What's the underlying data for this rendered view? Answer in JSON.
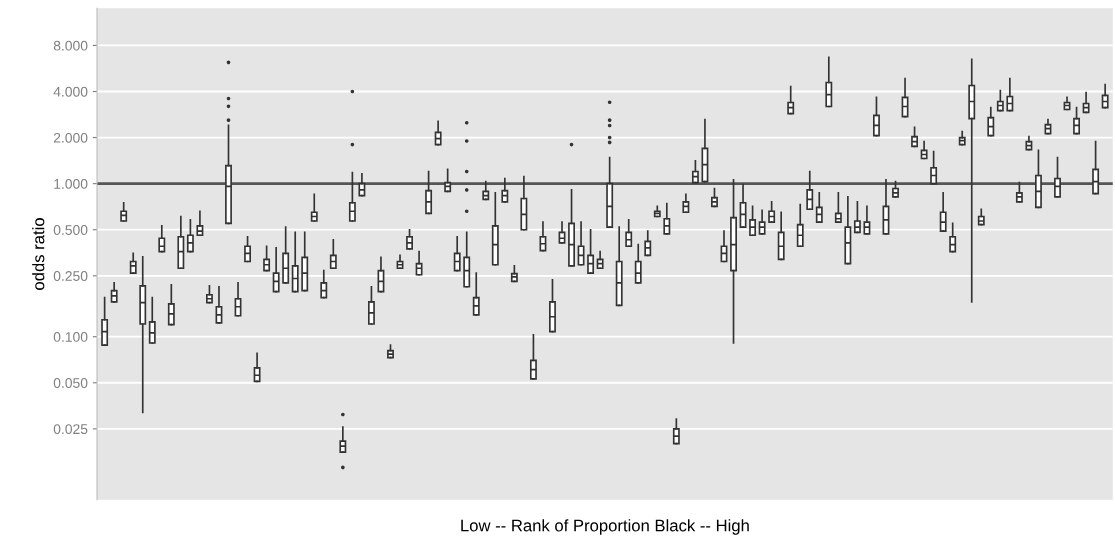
{
  "chart_data": {
    "type": "box",
    "xlabel": "Low -- Rank of Proportion Black -- High",
    "ylabel": "odds ratio",
    "categories": [
      null,
      null,
      null,
      null,
      null,
      null,
      null,
      null,
      null,
      null,
      null,
      null,
      null,
      null,
      null,
      null,
      null,
      null,
      null,
      null,
      null,
      null,
      null,
      null,
      null,
      null,
      null,
      null,
      null,
      null,
      null,
      null,
      null,
      null,
      null,
      null,
      null,
      null,
      null,
      null,
      null,
      null,
      null,
      null,
      null,
      null,
      null,
      null,
      null,
      null,
      null,
      null,
      null,
      null,
      null,
      null,
      null,
      null,
      null,
      null,
      null,
      null,
      null,
      null,
      null,
      null,
      null,
      null,
      null,
      null,
      null,
      null,
      null,
      null,
      null,
      null,
      null,
      null,
      null,
      null,
      null,
      null,
      null,
      null,
      null,
      null,
      null,
      null,
      null,
      null,
      null,
      null,
      null,
      null,
      null,
      null,
      null,
      null,
      null,
      null,
      null,
      null,
      null,
      null,
      null,
      null
    ],
    "log": "y",
    "ylim": [
      0.0086,
      14
    ],
    "yticks": [
      {
        "value": 0.025,
        "label": "0.025"
      },
      {
        "value": 0.05,
        "label": "0.050"
      },
      {
        "value": 0.1,
        "label": "0.100"
      },
      {
        "value": 0.25,
        "label": "0.250"
      },
      {
        "value": 0.5,
        "label": "0.500"
      },
      {
        "value": 1,
        "label": "1.000"
      },
      {
        "value": 2,
        "label": "2.000"
      },
      {
        "value": 4,
        "label": "4.000"
      },
      {
        "value": 8,
        "label": "8.000"
      }
    ],
    "grid": "y",
    "tick_labels": "y",
    "ref_lines": [
      {
        "axis": "y",
        "value": 1,
        "color": "#555555"
      }
    ],
    "series": [
      {
        "color": "#333333",
        "boxes": [
          {
            "low": 0.088,
            "q1": 0.088,
            "median": 0.108,
            "q3": 0.129,
            "high": 0.18
          },
          {
            "low": 0.169,
            "q1": 0.169,
            "median": 0.185,
            "q3": 0.2,
            "high": 0.225
          },
          {
            "low": 0.57,
            "q1": 0.57,
            "median": 0.62,
            "q3": 0.66,
            "high": 0.75
          },
          {
            "low": 0.26,
            "q1": 0.26,
            "median": 0.29,
            "q3": 0.31,
            "high": 0.35
          },
          {
            "low": 0.032,
            "q1": 0.121,
            "median": 0.167,
            "q3": 0.215,
            "high": 0.333
          },
          {
            "low": 0.091,
            "q1": 0.091,
            "median": 0.106,
            "q3": 0.125,
            "high": 0.18
          },
          {
            "low": 0.36,
            "q1": 0.36,
            "median": 0.39,
            "q3": 0.44,
            "high": 0.53
          },
          {
            "low": 0.12,
            "q1": 0.12,
            "median": 0.141,
            "q3": 0.164,
            "high": 0.218
          },
          {
            "low": 0.28,
            "q1": 0.28,
            "median": 0.36,
            "q3": 0.45,
            "high": 0.61
          },
          {
            "low": 0.36,
            "q1": 0.36,
            "median": 0.41,
            "q3": 0.46,
            "high": 0.58
          },
          {
            "low": 0.46,
            "q1": 0.46,
            "median": 0.49,
            "q3": 0.53,
            "high": 0.66
          },
          {
            "low": 0.167,
            "q1": 0.167,
            "median": 0.177,
            "q3": 0.188,
            "high": 0.215
          },
          {
            "low": 0.123,
            "q1": 0.123,
            "median": 0.139,
            "q3": 0.157,
            "high": 0.212
          },
          {
            "low": 0.55,
            "q1": 0.55,
            "median": 0.96,
            "q3": 1.31,
            "high": 2.4,
            "outliers": [
              6.2,
              3.6,
              3.2,
              2.6
            ]
          },
          {
            "low": 0.137,
            "q1": 0.137,
            "median": 0.157,
            "q3": 0.177,
            "high": 0.225
          },
          {
            "low": 0.31,
            "q1": 0.31,
            "median": 0.35,
            "q3": 0.39,
            "high": 0.45
          },
          {
            "low": 0.051,
            "q1": 0.051,
            "median": 0.056,
            "q3": 0.0625,
            "high": 0.078
          },
          {
            "low": 0.27,
            "q1": 0.27,
            "median": 0.295,
            "q3": 0.32,
            "high": 0.39
          },
          {
            "low": 0.197,
            "q1": 0.197,
            "median": 0.23,
            "q3": 0.26,
            "high": 0.38
          },
          {
            "low": 0.225,
            "q1": 0.225,
            "median": 0.28,
            "q3": 0.35,
            "high": 0.52
          },
          {
            "low": 0.197,
            "q1": 0.197,
            "median": 0.24,
            "q3": 0.29,
            "high": 0.48
          },
          {
            "low": 0.2,
            "q1": 0.2,
            "median": 0.26,
            "q3": 0.33,
            "high": 0.48
          },
          {
            "low": 0.57,
            "q1": 0.57,
            "median": 0.61,
            "q3": 0.65,
            "high": 0.85
          },
          {
            "low": 0.18,
            "q1": 0.18,
            "median": 0.2,
            "q3": 0.225,
            "high": 0.27
          },
          {
            "low": 0.28,
            "q1": 0.28,
            "median": 0.31,
            "q3": 0.34,
            "high": 0.43
          },
          {
            "low": 0.0176,
            "q1": 0.0176,
            "median": 0.0193,
            "q3": 0.0208,
            "high": 0.0257,
            "outliers": [
              0.031,
              0.014
            ]
          },
          {
            "low": 0.57,
            "q1": 0.57,
            "median": 0.66,
            "q3": 0.75,
            "high": 1.18,
            "outliers": [
              4.0,
              1.8
            ]
          },
          {
            "low": 0.835,
            "q1": 0.835,
            "median": 0.91,
            "q3": 1.0,
            "high": 1.16
          },
          {
            "low": 0.121,
            "q1": 0.121,
            "median": 0.143,
            "q3": 0.169,
            "high": 0.212
          },
          {
            "low": 0.197,
            "q1": 0.197,
            "median": 0.23,
            "q3": 0.27,
            "high": 0.33
          },
          {
            "low": 0.073,
            "q1": 0.073,
            "median": 0.077,
            "q3": 0.081,
            "high": 0.088
          },
          {
            "low": 0.28,
            "q1": 0.28,
            "median": 0.295,
            "q3": 0.31,
            "high": 0.34
          },
          {
            "low": 0.375,
            "q1": 0.375,
            "median": 0.41,
            "q3": 0.45,
            "high": 0.5
          },
          {
            "low": 0.254,
            "q1": 0.254,
            "median": 0.28,
            "q3": 0.3,
            "high": 0.36
          },
          {
            "low": 0.64,
            "q1": 0.64,
            "median": 0.76,
            "q3": 0.9,
            "high": 1.2
          },
          {
            "low": 1.8,
            "q1": 1.8,
            "median": 1.97,
            "q3": 2.16,
            "high": 2.55
          },
          {
            "low": 0.89,
            "q1": 0.89,
            "median": 0.96,
            "q3": 1.015,
            "high": 1.24
          },
          {
            "low": 0.27,
            "q1": 0.27,
            "median": 0.31,
            "q3": 0.35,
            "high": 0.45
          },
          {
            "low": 0.212,
            "q1": 0.212,
            "median": 0.27,
            "q3": 0.33,
            "high": 0.48,
            "outliers": [
              2.5,
              1.9,
              1.2,
              0.91,
              0.66
            ]
          },
          {
            "low": 0.139,
            "q1": 0.139,
            "median": 0.159,
            "q3": 0.18,
            "high": 0.26
          },
          {
            "low": 0.79,
            "q1": 0.79,
            "median": 0.835,
            "q3": 0.89,
            "high": 1.03
          },
          {
            "low": 0.295,
            "q1": 0.295,
            "median": 0.4,
            "q3": 0.53,
            "high": 0.87
          },
          {
            "low": 0.76,
            "q1": 0.76,
            "median": 0.835,
            "q3": 0.9,
            "high": 1.08
          },
          {
            "low": 0.23,
            "q1": 0.23,
            "median": 0.246,
            "q3": 0.258,
            "high": 0.29
          },
          {
            "low": 0.5,
            "q1": 0.5,
            "median": 0.63,
            "q3": 0.8,
            "high": 1.11
          },
          {
            "low": 0.053,
            "q1": 0.053,
            "median": 0.061,
            "q3": 0.07,
            "high": 0.103
          },
          {
            "low": 0.365,
            "q1": 0.365,
            "median": 0.405,
            "q3": 0.45,
            "high": 0.56
          },
          {
            "low": 0.108,
            "q1": 0.108,
            "median": 0.135,
            "q3": 0.169,
            "high": 0.235
          },
          {
            "low": 0.41,
            "q1": 0.41,
            "median": 0.44,
            "q3": 0.48,
            "high": 0.56
          },
          {
            "low": 0.29,
            "q1": 0.29,
            "median": 0.4,
            "q3": 0.55,
            "high": 0.91,
            "outliers": [
              1.8
            ]
          },
          {
            "low": 0.295,
            "q1": 0.295,
            "median": 0.34,
            "q3": 0.39,
            "high": 0.56
          },
          {
            "low": 0.26,
            "q1": 0.26,
            "median": 0.3,
            "q3": 0.34,
            "high": 0.5
          },
          {
            "low": 0.28,
            "q1": 0.28,
            "median": 0.3,
            "q3": 0.32,
            "high": 0.36
          },
          {
            "low": 0.52,
            "q1": 0.52,
            "median": 0.71,
            "q3": 1.0,
            "high": 1.48,
            "outliers": [
              3.4,
              2.6,
              2.4,
              2.0,
              1.86
            ]
          },
          {
            "low": 0.16,
            "q1": 0.16,
            "median": 0.225,
            "q3": 0.31,
            "high": 0.52
          },
          {
            "low": 0.39,
            "q1": 0.39,
            "median": 0.43,
            "q3": 0.48,
            "high": 0.58
          },
          {
            "low": 0.225,
            "q1": 0.225,
            "median": 0.26,
            "q3": 0.31,
            "high": 0.4
          },
          {
            "low": 0.34,
            "q1": 0.34,
            "median": 0.38,
            "q3": 0.42,
            "high": 0.49
          },
          {
            "low": 0.61,
            "q1": 0.61,
            "median": 0.64,
            "q3": 0.66,
            "high": 0.71
          },
          {
            "low": 0.47,
            "q1": 0.47,
            "median": 0.53,
            "q3": 0.59,
            "high": 0.74
          },
          {
            "low": 0.02,
            "q1": 0.02,
            "median": 0.0224,
            "q3": 0.025,
            "high": 0.029
          },
          {
            "low": 0.65,
            "q1": 0.65,
            "median": 0.71,
            "q3": 0.76,
            "high": 0.85
          },
          {
            "low": 1.015,
            "q1": 1.015,
            "median": 1.11,
            "q3": 1.2,
            "high": 1.41
          },
          {
            "low": 1.03,
            "q1": 1.03,
            "median": 1.33,
            "q3": 1.7,
            "high": 2.62
          },
          {
            "low": 0.71,
            "q1": 0.71,
            "median": 0.76,
            "q3": 0.81,
            "high": 0.93
          },
          {
            "low": 0.31,
            "q1": 0.31,
            "median": 0.35,
            "q3": 0.39,
            "high": 0.49
          },
          {
            "low": 0.091,
            "q1": 0.27,
            "median": 0.4,
            "q3": 0.6,
            "high": 1.06
          },
          {
            "low": 0.52,
            "q1": 0.52,
            "median": 0.63,
            "q3": 0.75,
            "high": 0.985
          },
          {
            "low": 0.46,
            "q1": 0.46,
            "median": 0.52,
            "q3": 0.58,
            "high": 0.71
          },
          {
            "low": 0.47,
            "q1": 0.47,
            "median": 0.52,
            "q3": 0.56,
            "high": 0.67
          },
          {
            "low": 0.56,
            "q1": 0.56,
            "median": 0.61,
            "q3": 0.66,
            "high": 0.76
          },
          {
            "low": 0.32,
            "q1": 0.32,
            "median": 0.39,
            "q3": 0.48,
            "high": 0.65
          },
          {
            "low": 2.87,
            "q1": 2.87,
            "median": 3.14,
            "q3": 3.39,
            "high": 4.31
          },
          {
            "low": 0.39,
            "q1": 0.39,
            "median": 0.46,
            "q3": 0.54,
            "high": 0.73
          },
          {
            "low": 0.68,
            "q1": 0.68,
            "median": 0.79,
            "q3": 0.91,
            "high": 1.2
          },
          {
            "low": 0.56,
            "q1": 0.56,
            "median": 0.63,
            "q3": 0.7,
            "high": 0.87
          },
          {
            "low": 3.19,
            "q1": 3.19,
            "median": 3.82,
            "q3": 4.58,
            "high": 6.68
          },
          {
            "low": 0.56,
            "q1": 0.56,
            "median": 0.59,
            "q3": 0.64,
            "high": 0.87
          },
          {
            "low": 0.3,
            "q1": 0.3,
            "median": 0.41,
            "q3": 0.52,
            "high": 0.82
          },
          {
            "low": 0.48,
            "q1": 0.48,
            "median": 0.52,
            "q3": 0.57,
            "high": 0.76
          },
          {
            "low": 0.47,
            "q1": 0.47,
            "median": 0.52,
            "q3": 0.56,
            "high": 0.71
          },
          {
            "low": 2.06,
            "q1": 2.06,
            "median": 2.4,
            "q3": 2.79,
            "high": 3.66
          },
          {
            "low": 0.47,
            "q1": 0.47,
            "median": 0.58,
            "q3": 0.71,
            "high": 1.06
          },
          {
            "low": 0.82,
            "q1": 0.82,
            "median": 0.87,
            "q3": 0.93,
            "high": 1.03
          },
          {
            "low": 2.74,
            "q1": 2.74,
            "median": 3.19,
            "q3": 3.66,
            "high": 4.86
          },
          {
            "low": 1.75,
            "q1": 1.75,
            "median": 1.88,
            "q3": 2.03,
            "high": 2.33
          },
          {
            "low": 1.46,
            "q1": 1.46,
            "median": 1.55,
            "q3": 1.65,
            "high": 1.88
          },
          {
            "low": 1.0,
            "q1": 1.0,
            "median": 1.13,
            "q3": 1.27,
            "high": 1.62
          },
          {
            "low": 0.49,
            "q1": 0.49,
            "median": 0.56,
            "q3": 0.65,
            "high": 0.87
          },
          {
            "low": 0.36,
            "q1": 0.36,
            "median": 0.4,
            "q3": 0.45,
            "high": 0.55
          },
          {
            "low": 1.8,
            "q1": 1.8,
            "median": 1.91,
            "q3": 2.0,
            "high": 2.19
          },
          {
            "low": 0.169,
            "q1": 2.66,
            "median": 3.44,
            "q3": 4.38,
            "high": 6.48
          },
          {
            "low": 0.54,
            "q1": 0.54,
            "median": 0.57,
            "q3": 0.61,
            "high": 0.68
          },
          {
            "low": 2.06,
            "q1": 2.06,
            "median": 2.36,
            "q3": 2.7,
            "high": 3.14
          },
          {
            "low": 3.0,
            "q1": 3.0,
            "median": 3.24,
            "q3": 3.44,
            "high": 4.06
          },
          {
            "low": 3.0,
            "q1": 3.0,
            "median": 3.34,
            "q3": 3.71,
            "high": 4.86
          },
          {
            "low": 0.76,
            "q1": 0.76,
            "median": 0.82,
            "q3": 0.87,
            "high": 1.015
          },
          {
            "low": 1.67,
            "q1": 1.67,
            "median": 1.77,
            "q3": 1.88,
            "high": 2.03
          },
          {
            "low": 0.7,
            "q1": 0.7,
            "median": 0.89,
            "q3": 1.13,
            "high": 1.65
          },
          {
            "low": 2.12,
            "q1": 2.12,
            "median": 2.29,
            "q3": 2.43,
            "high": 2.62
          },
          {
            "low": 0.82,
            "q1": 0.82,
            "median": 0.96,
            "q3": 1.08,
            "high": 1.48
          },
          {
            "low": 3.05,
            "q1": 3.05,
            "median": 3.24,
            "q3": 3.39,
            "high": 3.66
          },
          {
            "low": 2.12,
            "q1": 2.12,
            "median": 2.4,
            "q3": 2.66,
            "high": 3.14
          },
          {
            "low": 2.92,
            "q1": 2.92,
            "median": 3.14,
            "q3": 3.34,
            "high": 3.94
          },
          {
            "low": 0.86,
            "q1": 0.86,
            "median": 1.03,
            "q3": 1.24,
            "high": 1.88
          },
          {
            "low": 3.14,
            "q1": 3.14,
            "median": 3.44,
            "q3": 3.77,
            "high": 4.44
          }
        ]
      }
    ]
  }
}
